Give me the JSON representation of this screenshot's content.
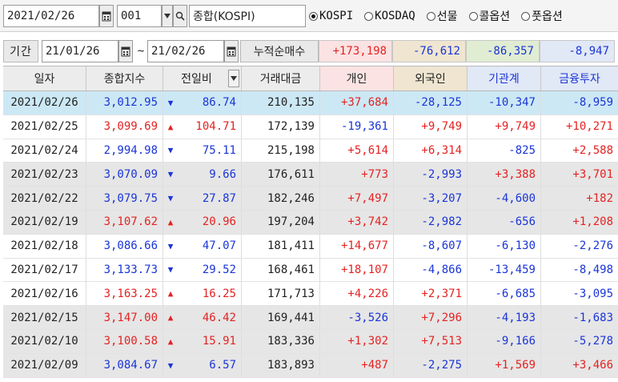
{
  "top": {
    "date": "2021/02/26",
    "code": "001",
    "name": "종합(KOSPI)",
    "markets": [
      {
        "label": "KOSPI",
        "selected": true
      },
      {
        "label": "KOSDAQ",
        "selected": false
      },
      {
        "label": "선물",
        "selected": false
      },
      {
        "label": "콜옵션",
        "selected": false
      },
      {
        "label": "풋옵션",
        "selected": false
      }
    ]
  },
  "period": {
    "label": "기간",
    "from": "21/01/26",
    "separator": "~",
    "to": "21/02/26",
    "cumulative_label": "누적순매수"
  },
  "summary": {
    "individual": "+173,198",
    "foreign": "-76,612",
    "institution": "-86,357",
    "financial": "-8,947"
  },
  "columns": {
    "date": "일자",
    "index": "종합지수",
    "change": "전일비",
    "volume": "거래대금",
    "individual": "개인",
    "foreign": "외국인",
    "institution": "기관계",
    "financial": "금융투자"
  },
  "colors": {
    "up": "#e52222",
    "down": "#1a35d8",
    "selected_row": "#cce8f5"
  },
  "rows": [
    {
      "date": "2021/02/26",
      "index": "3,012.95",
      "dir": "down",
      "change": "86.74",
      "volume": "210,135",
      "individual": "+37,684",
      "foreign": "-28,125",
      "institution": "-10,347",
      "financial": "-8,959"
    },
    {
      "date": "2021/02/25",
      "index": "3,099.69",
      "dir": "up",
      "change": "104.71",
      "volume": "172,139",
      "individual": "-19,361",
      "foreign": "+9,749",
      "institution": "+9,749",
      "financial": "+10,271"
    },
    {
      "date": "2021/02/24",
      "index": "2,994.98",
      "dir": "down",
      "change": "75.11",
      "volume": "215,198",
      "individual": "+5,614",
      "foreign": "+6,314",
      "institution": "-825",
      "financial": "+2,588"
    },
    {
      "date": "2021/02/23",
      "index": "3,070.09",
      "dir": "down",
      "change": "9.66",
      "volume": "176,611",
      "individual": "+773",
      "foreign": "-2,993",
      "institution": "+3,388",
      "financial": "+3,701"
    },
    {
      "date": "2021/02/22",
      "index": "3,079.75",
      "dir": "down",
      "change": "27.87",
      "volume": "182,246",
      "individual": "+7,497",
      "foreign": "-3,207",
      "institution": "-4,600",
      "financial": "+182"
    },
    {
      "date": "2021/02/19",
      "index": "3,107.62",
      "dir": "up",
      "change": "20.96",
      "volume": "197,204",
      "individual": "+3,742",
      "foreign": "-2,982",
      "institution": "-656",
      "financial": "+1,208"
    },
    {
      "date": "2021/02/18",
      "index": "3,086.66",
      "dir": "down",
      "change": "47.07",
      "volume": "181,411",
      "individual": "+14,677",
      "foreign": "-8,607",
      "institution": "-6,130",
      "financial": "-2,276"
    },
    {
      "date": "2021/02/17",
      "index": "3,133.73",
      "dir": "down",
      "change": "29.52",
      "volume": "168,461",
      "individual": "+18,107",
      "foreign": "-4,866",
      "institution": "-13,459",
      "financial": "-8,498"
    },
    {
      "date": "2021/02/16",
      "index": "3,163.25",
      "dir": "up",
      "change": "16.25",
      "volume": "171,713",
      "individual": "+4,226",
      "foreign": "+2,371",
      "institution": "-6,685",
      "financial": "-3,095"
    },
    {
      "date": "2021/02/15",
      "index": "3,147.00",
      "dir": "up",
      "change": "46.42",
      "volume": "169,441",
      "individual": "-3,526",
      "foreign": "+7,296",
      "institution": "-4,193",
      "financial": "-1,683"
    },
    {
      "date": "2021/02/10",
      "index": "3,100.58",
      "dir": "up",
      "change": "15.91",
      "volume": "183,336",
      "individual": "+1,302",
      "foreign": "+7,513",
      "institution": "-9,166",
      "financial": "-5,278"
    },
    {
      "date": "2021/02/09",
      "index": "3,084.67",
      "dir": "down",
      "change": "6.57",
      "volume": "183,893",
      "individual": "+487",
      "foreign": "-2,275",
      "institution": "+1,569",
      "financial": "+3,466"
    }
  ]
}
